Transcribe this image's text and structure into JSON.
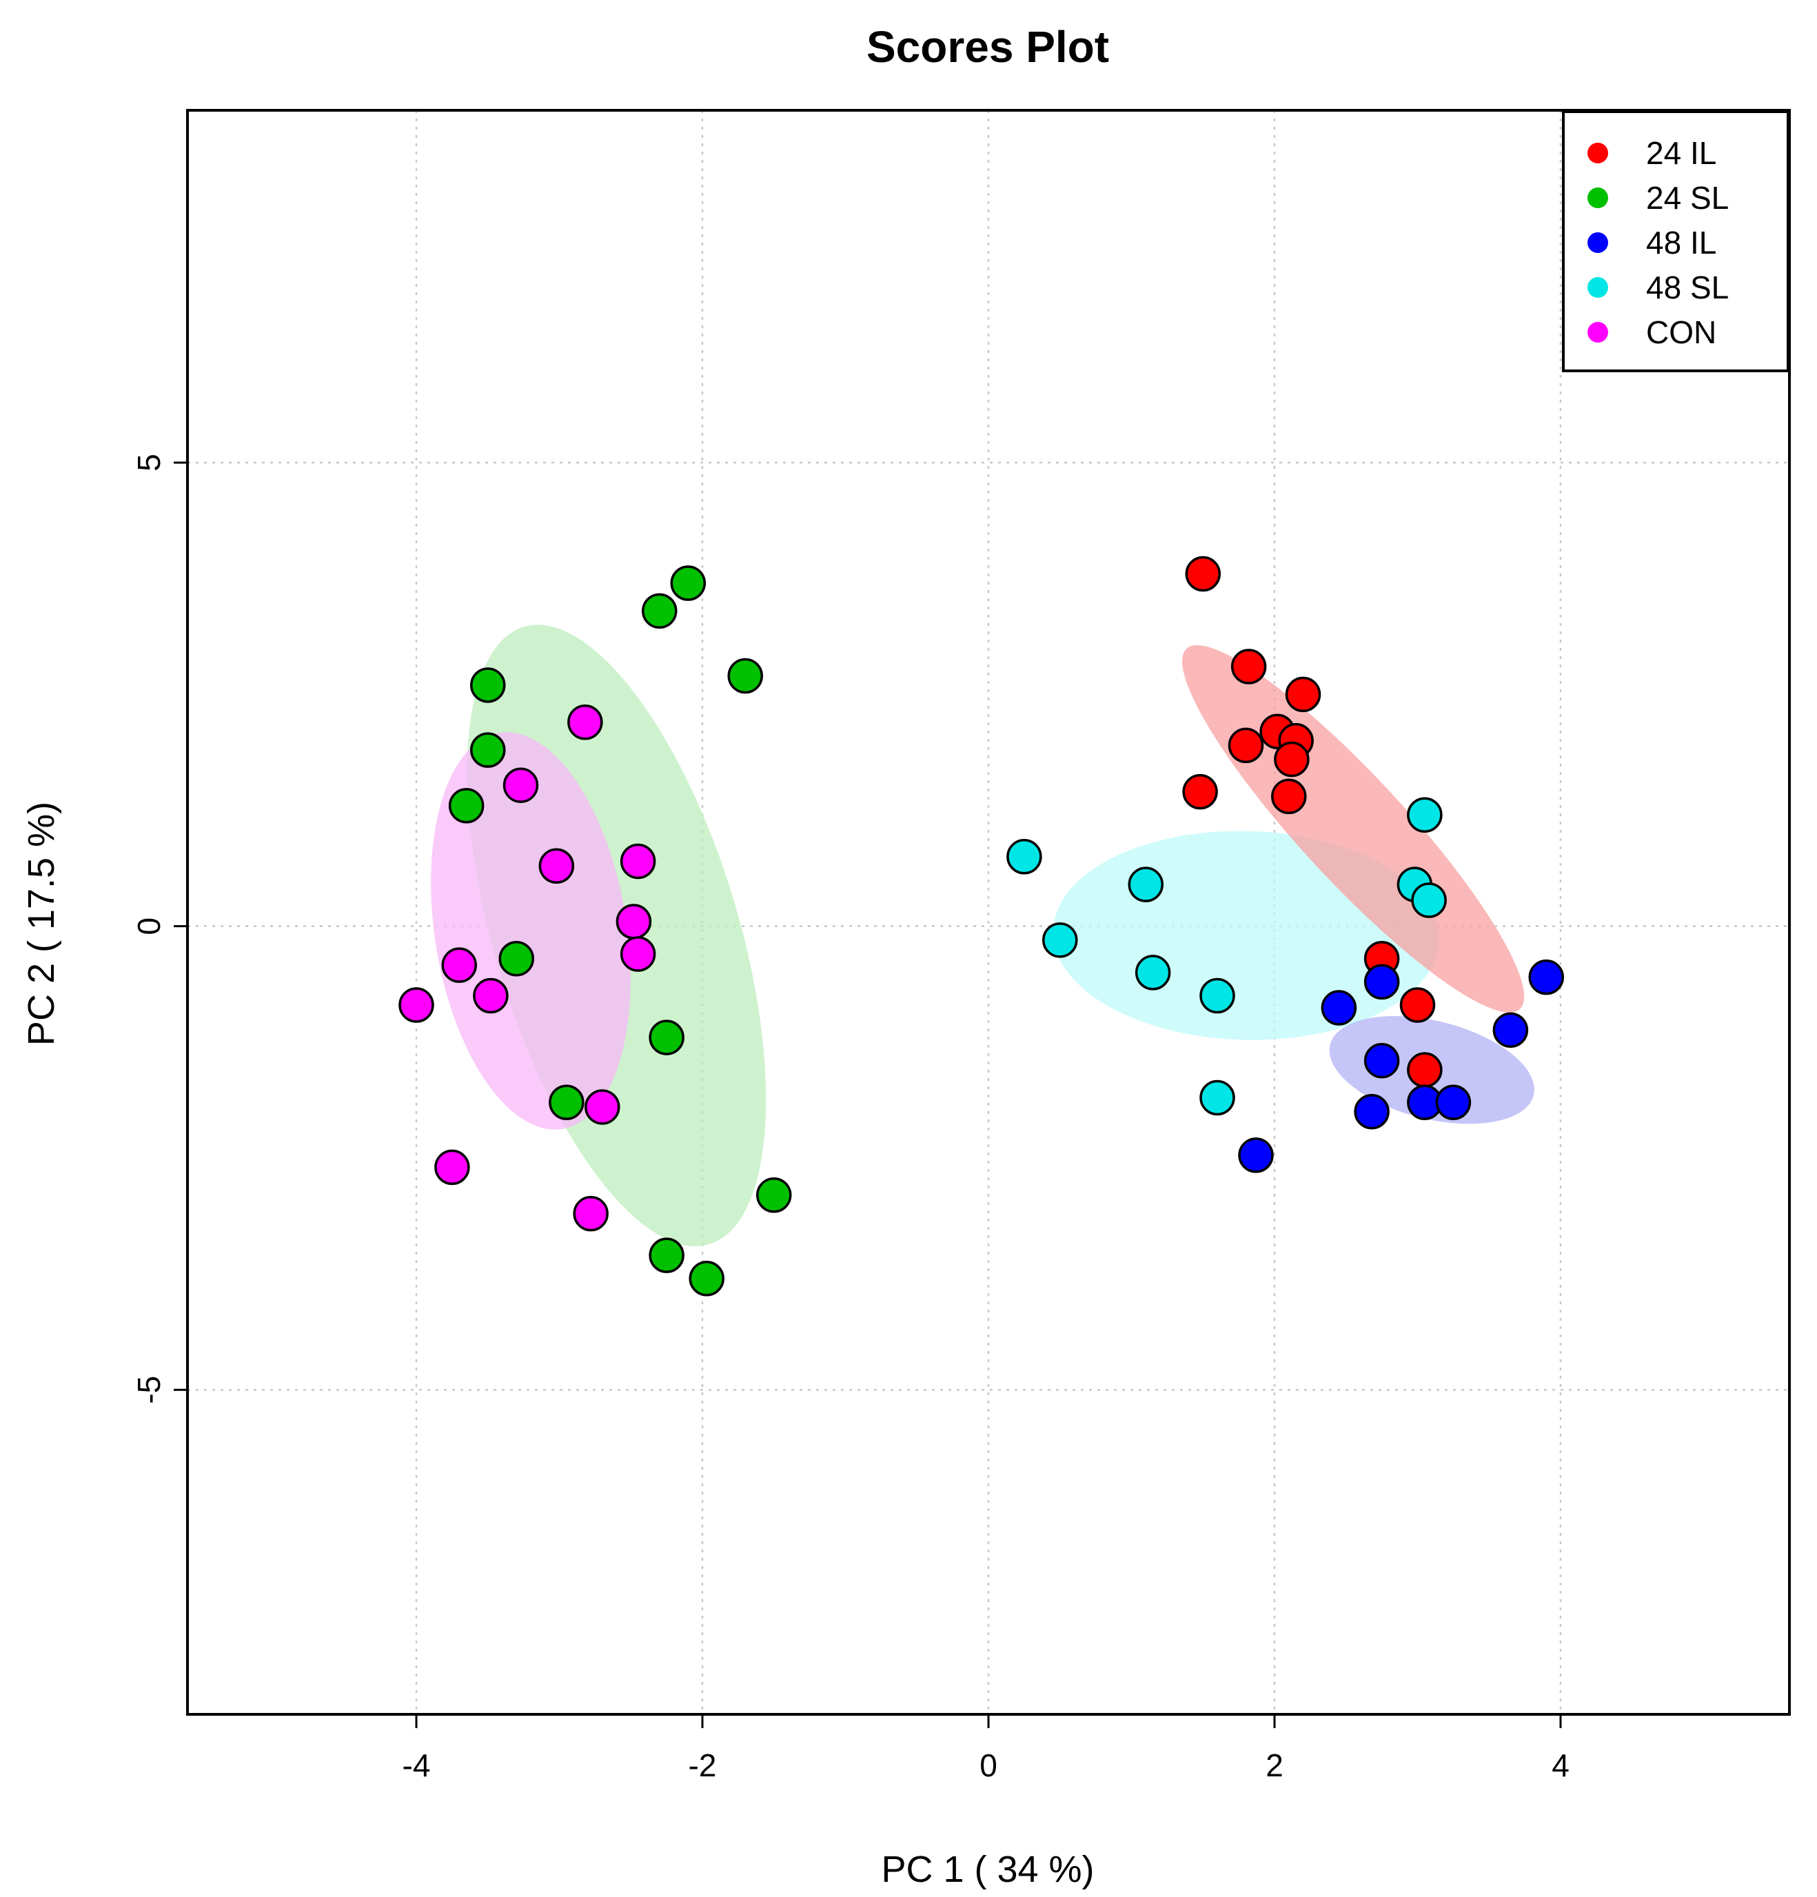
{
  "chart_data": {
    "type": "scatter",
    "title": "Scores Plot",
    "xlabel": "PC 1 ( 34 %)",
    "ylabel": "PC 2 ( 17.5 %)",
    "xlim": [
      -5.6,
      5.6
    ],
    "ylim": [
      -8.5,
      8.8
    ],
    "xticks": [
      -4,
      -2,
      0,
      2,
      4
    ],
    "yticks": [
      -5,
      0,
      5
    ],
    "xtick_labels": [
      "-4",
      "-2",
      "0",
      "2",
      "4"
    ],
    "ytick_labels": [
      "-5",
      "0",
      "5"
    ],
    "grid": true,
    "legend_position": "top-right",
    "series": [
      {
        "name": "24 IL",
        "color": "#ff0000",
        "ellipse_color": "#f8a0a0",
        "points": [
          [
            1.5,
            3.8
          ],
          [
            1.82,
            2.8
          ],
          [
            2.2,
            2.5
          ],
          [
            2.02,
            2.1
          ],
          [
            2.15,
            2.0
          ],
          [
            1.8,
            1.95
          ],
          [
            2.12,
            1.8
          ],
          [
            1.48,
            1.45
          ],
          [
            2.1,
            1.4
          ],
          [
            2.75,
            -0.35
          ],
          [
            3.0,
            -0.85
          ],
          [
            3.05,
            -1.55
          ]
        ],
        "ellipse": {
          "cx": 2.55,
          "cy": 1.05,
          "rx": 4.55,
          "ry": 0.85,
          "angle_deg": -60
        }
      },
      {
        "name": "24 SL",
        "color": "#00c000",
        "ellipse_color": "#bdeebd",
        "points": [
          [
            -2.1,
            3.7
          ],
          [
            -2.3,
            3.4
          ],
          [
            -1.7,
            2.7
          ],
          [
            -3.5,
            2.6
          ],
          [
            -3.5,
            1.9
          ],
          [
            -3.65,
            1.3
          ],
          [
            -3.3,
            -0.35
          ],
          [
            -2.25,
            -1.2
          ],
          [
            -2.95,
            -1.9
          ],
          [
            -1.5,
            -2.9
          ],
          [
            -2.25,
            -3.55
          ],
          [
            -1.97,
            -3.8
          ]
        ],
        "ellipse": {
          "cx": -2.6,
          "cy": -0.1,
          "rx": 6.8,
          "ry": 1.75,
          "angle_deg": -80
        }
      },
      {
        "name": "48 IL",
        "color": "#0000ff",
        "ellipse_color": "#b2b2f5",
        "points": [
          [
            2.75,
            -0.6
          ],
          [
            3.9,
            -0.55
          ],
          [
            2.45,
            -0.88
          ],
          [
            3.65,
            -1.12
          ],
          [
            2.75,
            -1.45
          ],
          [
            3.05,
            -1.9
          ],
          [
            3.25,
            -1.9
          ],
          [
            2.68,
            -2.0
          ],
          [
            1.87,
            -2.47
          ]
        ],
        "ellipse": {
          "cx": 3.1,
          "cy": -1.55,
          "rx": 1.55,
          "ry": 1.0,
          "angle_deg": -30
        }
      },
      {
        "name": "48 SL",
        "color": "#00e5e5",
        "ellipse_color": "#bff9fa",
        "points": [
          [
            3.05,
            1.2
          ],
          [
            0.25,
            0.75
          ],
          [
            1.1,
            0.45
          ],
          [
            2.98,
            0.45
          ],
          [
            3.08,
            0.28
          ],
          [
            0.5,
            -0.15
          ],
          [
            1.15,
            -0.5
          ],
          [
            1.6,
            -0.75
          ],
          [
            1.6,
            -1.85
          ]
        ],
        "ellipse": {
          "cx": 1.8,
          "cy": -0.1,
          "rx": 2.7,
          "ry": 2.25,
          "angle_deg": -5
        }
      },
      {
        "name": "CON",
        "color": "#ff00ff",
        "ellipse_color": "#f8b8f8",
        "points": [
          [
            -2.82,
            2.2
          ],
          [
            -3.27,
            1.52
          ],
          [
            -3.02,
            0.65
          ],
          [
            -2.45,
            0.7
          ],
          [
            -2.48,
            0.05
          ],
          [
            -2.45,
            -0.3
          ],
          [
            -3.7,
            -0.42
          ],
          [
            -3.48,
            -0.75
          ],
          [
            -4.0,
            -0.85
          ],
          [
            -2.7,
            -1.95
          ],
          [
            -3.75,
            -2.6
          ],
          [
            -2.78,
            -3.1
          ]
        ],
        "ellipse": {
          "cx": -3.2,
          "cy": -0.05,
          "rx": 4.3,
          "ry": 1.35,
          "angle_deg": -85
        }
      }
    ]
  }
}
